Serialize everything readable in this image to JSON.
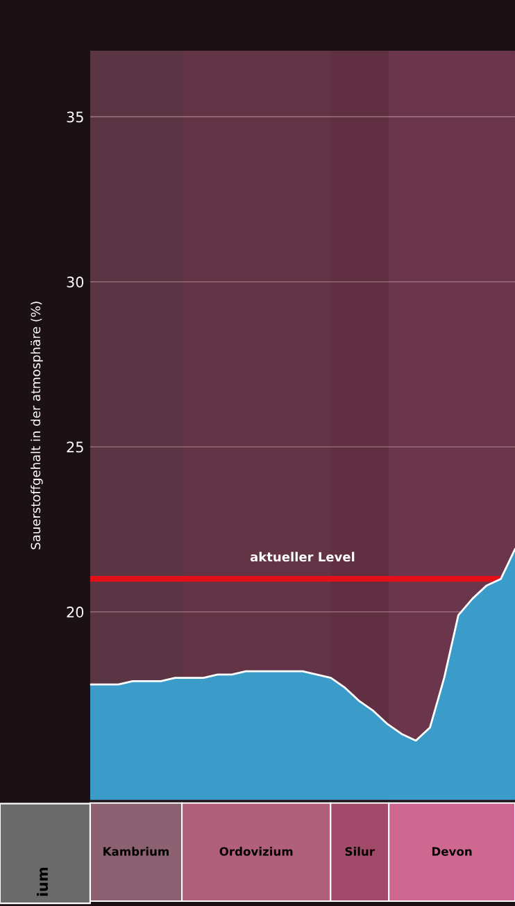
{
  "chart_data": {
    "type": "area",
    "ylabel": "Sauerstoffgehalt in der atmosphäre (%)",
    "categories": [
      null,
      null,
      null,
      null,
      null,
      null,
      null,
      null,
      null,
      null,
      null,
      null,
      null,
      null,
      null,
      null,
      null,
      null,
      null,
      null,
      null,
      null,
      null,
      null,
      null,
      null,
      null,
      null,
      null,
      null,
      null
    ],
    "series": [
      {
        "color": "#3b9cc9",
        "values": [
          17.8,
          17.8,
          17.8,
          17.9,
          17.9,
          17.9,
          18.0,
          18.0,
          18.0,
          18.1,
          18.1,
          18.2,
          18.2,
          18.2,
          18.2,
          18.2,
          18.1,
          18.0,
          17.7,
          17.3,
          17.0,
          16.6,
          16.3,
          16.1,
          16.5,
          18.0,
          19.9,
          20.4,
          20.8,
          21.0,
          21.9
        ]
      }
    ],
    "ylim": [
      14.3,
      37
    ],
    "yticks": [
      20,
      25,
      30,
      35
    ],
    "grid": "y",
    "ref_lines": [
      {
        "axis": "y",
        "value": 21,
        "label": "aktueller Level",
        "color": "#e3101a"
      }
    ],
    "annotations": [
      "ium",
      "Kambrium",
      "Ordovizium",
      "Silur",
      "Devon"
    ]
  }
}
